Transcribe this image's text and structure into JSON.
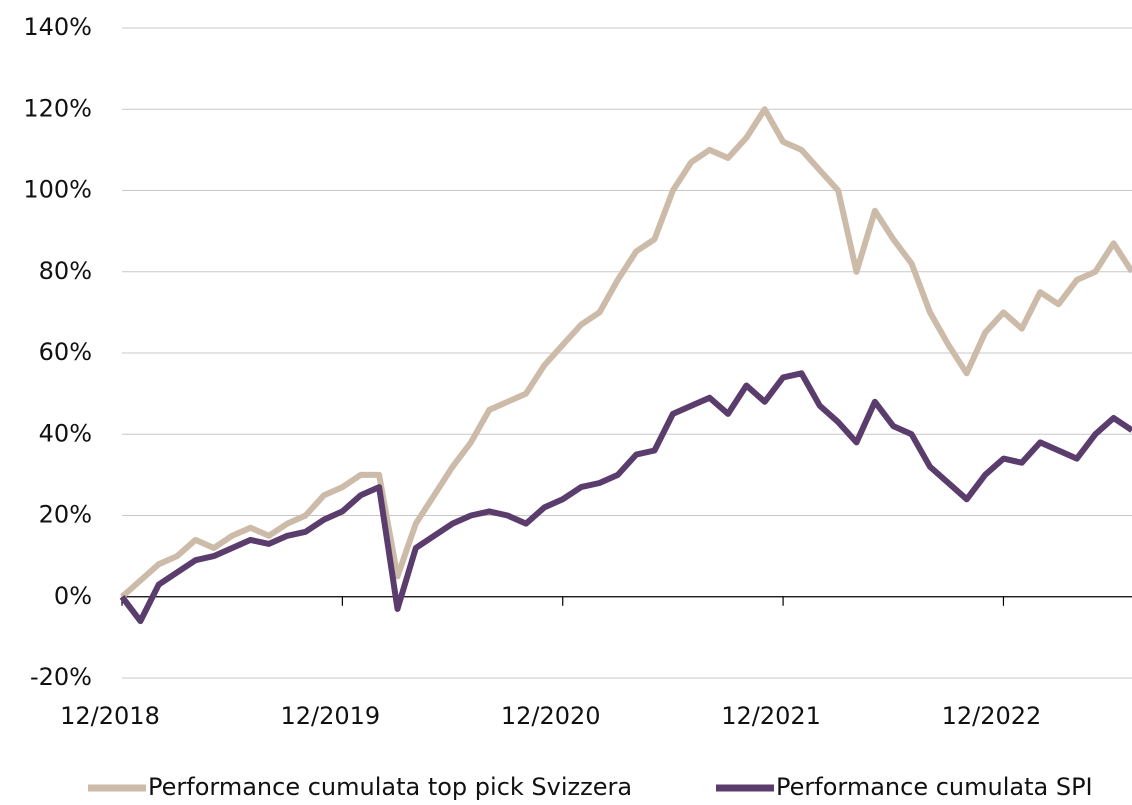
{
  "chart_data": {
    "type": "line",
    "x": [
      "12/2018",
      "01/2019",
      "02/2019",
      "03/2019",
      "04/2019",
      "05/2019",
      "06/2019",
      "07/2019",
      "08/2019",
      "09/2019",
      "10/2019",
      "11/2019",
      "12/2019",
      "01/2020",
      "02/2020",
      "03/2020",
      "04/2020",
      "05/2020",
      "06/2020",
      "07/2020",
      "08/2020",
      "09/2020",
      "10/2020",
      "11/2020",
      "12/2020",
      "01/2021",
      "02/2021",
      "03/2021",
      "04/2021",
      "05/2021",
      "06/2021",
      "07/2021",
      "08/2021",
      "09/2021",
      "10/2021",
      "11/2021",
      "12/2021",
      "01/2022",
      "02/2022",
      "03/2022",
      "04/2022",
      "05/2022",
      "06/2022",
      "07/2022",
      "08/2022",
      "09/2022",
      "10/2022",
      "11/2022",
      "12/2022",
      "01/2023",
      "02/2023",
      "03/2023",
      "04/2023",
      "05/2023",
      "06/2023",
      "07/2023"
    ],
    "series": [
      {
        "name": "Performance cumulata top pick Svizzera",
        "color": "#cdbba9",
        "values": [
          0,
          4,
          8,
          10,
          14,
          12,
          15,
          17,
          15,
          18,
          20,
          25,
          27,
          30,
          30,
          5,
          18,
          25,
          32,
          38,
          46,
          48,
          50,
          57,
          62,
          67,
          70,
          78,
          85,
          88,
          100,
          107,
          110,
          108,
          113,
          120,
          112,
          110,
          105,
          100,
          80,
          95,
          88,
          82,
          70,
          62,
          55,
          65,
          70,
          66,
          75,
          72,
          78,
          80,
          87,
          80
        ]
      },
      {
        "name": "Performance cumulata SPI",
        "color": "#5a3d6c",
        "values": [
          0,
          -6,
          3,
          6,
          9,
          10,
          12,
          14,
          13,
          15,
          16,
          19,
          21,
          25,
          27,
          -3,
          12,
          15,
          18,
          20,
          21,
          20,
          18,
          22,
          24,
          27,
          28,
          30,
          35,
          36,
          45,
          47,
          49,
          45,
          52,
          48,
          54,
          55,
          47,
          43,
          38,
          48,
          42,
          40,
          32,
          28,
          24,
          30,
          34,
          33,
          38,
          36,
          34,
          40,
          44,
          41
        ]
      }
    ],
    "xticks": [
      "12/2018",
      "12/2019",
      "12/2020",
      "12/2021",
      "12/2022"
    ],
    "ylim": [
      -20,
      140
    ],
    "yticks": [
      {
        "value": -20,
        "label": "-20%"
      },
      {
        "value": 0,
        "label": "0%"
      },
      {
        "value": 20,
        "label": "20%"
      },
      {
        "value": 40,
        "label": "40%"
      },
      {
        "value": 60,
        "label": "60%"
      },
      {
        "value": 80,
        "label": "80%"
      },
      {
        "value": 100,
        "label": "100%"
      },
      {
        "value": 120,
        "label": "120%"
      },
      {
        "value": 140,
        "label": "140%"
      }
    ],
    "grid": true,
    "legend": "bottom"
  }
}
